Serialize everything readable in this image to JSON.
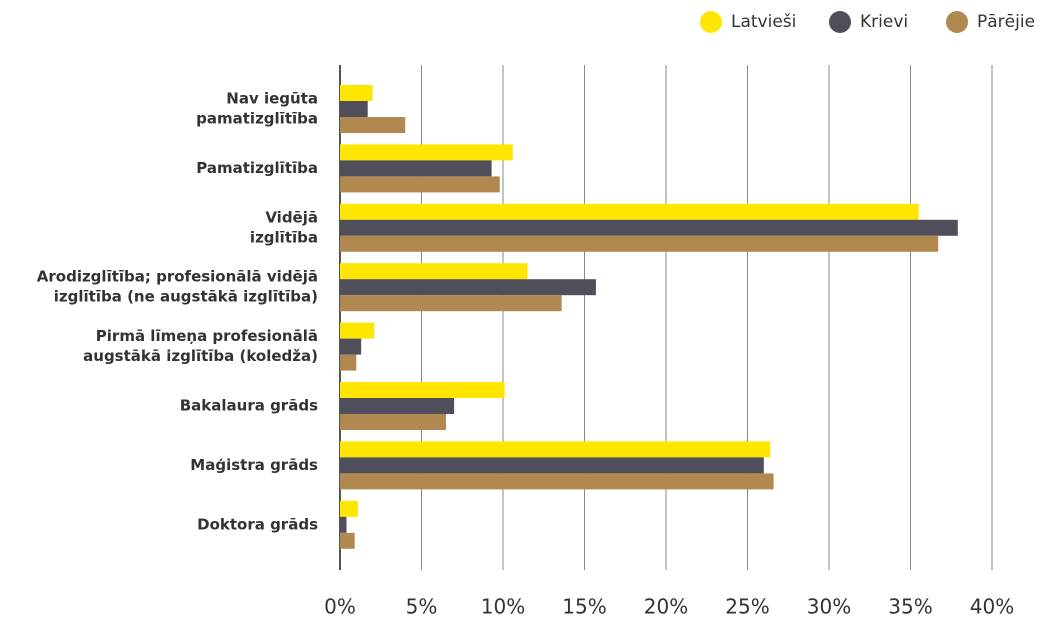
{
  "chart_data": {
    "type": "bar",
    "orientation": "horizontal",
    "categories": [
      [
        "Nav iegūta",
        "pamatizglītība"
      ],
      [
        "Pamatizglītība"
      ],
      [
        "Vidējā",
        "izglītība"
      ],
      [
        "Arodizglītība; profesionālā vidējā",
        "izglītība (ne augstākā izglītība)"
      ],
      [
        "Pirmā līmeņa profesionālā",
        "augstākā izglītība (koledža)"
      ],
      [
        "Bakalaura grāds"
      ],
      [
        "Maģistra grāds"
      ],
      [
        "Doktora grāds"
      ]
    ],
    "series": [
      {
        "name": "Latvieši",
        "color": "#ffe600",
        "values": [
          2.0,
          10.6,
          35.5,
          11.5,
          2.1,
          10.1,
          26.4,
          1.1
        ]
      },
      {
        "name": "Krievi",
        "color": "#4e4f5a",
        "values": [
          1.7,
          9.3,
          37.9,
          15.7,
          1.3,
          7.0,
          26.0,
          0.4
        ]
      },
      {
        "name": "Pārējie",
        "color": "#b08850",
        "values": [
          4.0,
          9.8,
          36.7,
          13.6,
          1.0,
          6.5,
          26.6,
          0.9
        ]
      }
    ],
    "xlim": [
      0,
      40
    ],
    "xticks": [
      {
        "value": 0,
        "label": "0%"
      },
      {
        "value": 5,
        "label": "5%"
      },
      {
        "value": 10,
        "label": "10%"
      },
      {
        "value": 15,
        "label": "15%"
      },
      {
        "value": 20,
        "label": "20%"
      },
      {
        "value": 25,
        "label": "25%"
      },
      {
        "value": 30,
        "label": "30%"
      },
      {
        "value": 35,
        "label": "35%"
      },
      {
        "value": 40,
        "label": "40%"
      }
    ],
    "grid": true,
    "legend": "top-right"
  }
}
